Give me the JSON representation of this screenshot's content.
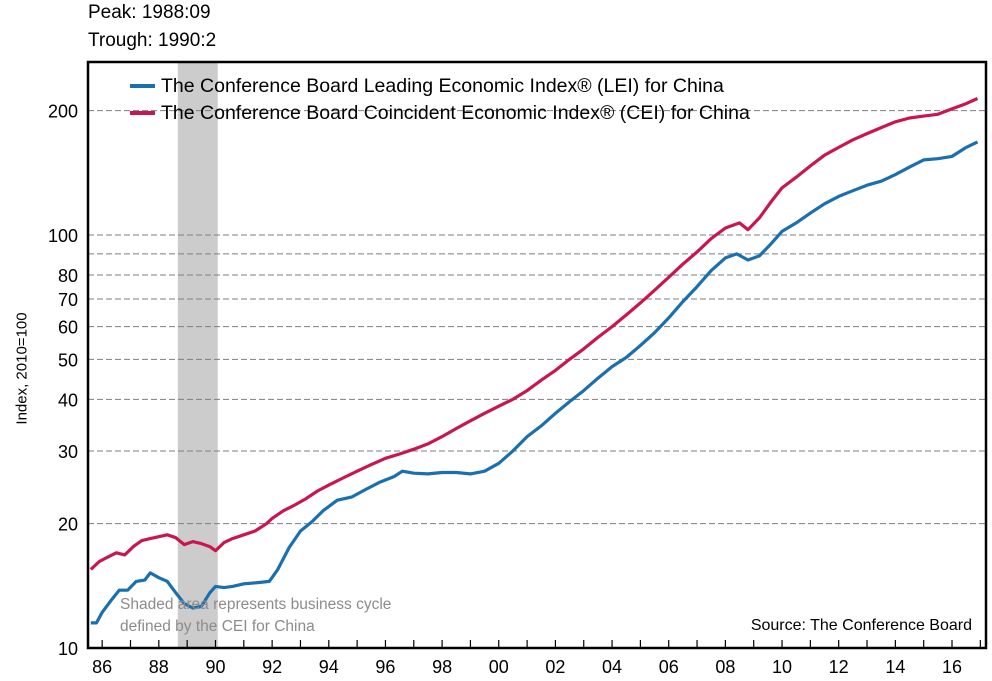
{
  "chart_data": {
    "type": "line",
    "annotations": {
      "peak": "Peak: 1988:09",
      "trough": "Trough: 1990:2",
      "shaded_note_line1": "Shaded area represents business cycle",
      "shaded_note_line2": "defined by the CEI for China",
      "source": "Source: The Conference Board"
    },
    "ylabel": "Index, 2010=100",
    "yscale": "log",
    "ylim": [
      10,
      260
    ],
    "yticks": [
      10,
      20,
      30,
      40,
      50,
      60,
      70,
      80,
      100,
      200
    ],
    "ygrid_values": [
      20,
      30,
      40,
      50,
      60,
      70,
      80,
      90,
      100,
      200
    ],
    "xlim": [
      1985.5,
      2017.2
    ],
    "xtick_labels": [
      "86",
      "88",
      "90",
      "92",
      "94",
      "96",
      "98",
      "00",
      "02",
      "04",
      "06",
      "08",
      "10",
      "12",
      "14",
      "16"
    ],
    "xtick_years": [
      1986,
      1988,
      1990,
      1992,
      1994,
      1996,
      1998,
      2000,
      2002,
      2004,
      2006,
      2008,
      2010,
      2012,
      2014,
      2016
    ],
    "recession": {
      "start": 1988.67,
      "end": 1990.08
    },
    "legend_position": "top-left",
    "series": [
      {
        "name": "The Conference Board Leading Economic Index® (LEI) for China",
        "color": "#1a6fae",
        "x": [
          1985.6,
          1985.8,
          1986.0,
          1986.3,
          1986.6,
          1986.9,
          1987.2,
          1987.5,
          1987.7,
          1988.0,
          1988.3,
          1988.6,
          1988.9,
          1989.2,
          1989.5,
          1989.8,
          1990.0,
          1990.3,
          1990.6,
          1991.0,
          1991.5,
          1991.9,
          1992.2,
          1992.6,
          1993.0,
          1993.4,
          1993.8,
          1994.3,
          1994.8,
          1995.3,
          1995.8,
          1996.3,
          1996.6,
          1997.0,
          1997.5,
          1998.0,
          1998.5,
          1999.0,
          1999.5,
          2000.0,
          2000.5,
          2001.0,
          2001.5,
          2002.0,
          2002.5,
          2003.0,
          2003.5,
          2004.0,
          2004.5,
          2005.0,
          2005.5,
          2006.0,
          2006.5,
          2007.0,
          2007.5,
          2008.0,
          2008.4,
          2008.8,
          2009.2,
          2009.6,
          2010.0,
          2010.5,
          2011.0,
          2011.5,
          2012.0,
          2012.5,
          2013.0,
          2013.5,
          2014.0,
          2014.5,
          2015.0,
          2015.5,
          2016.0,
          2016.5,
          2016.9
        ],
        "values": [
          11.5,
          11.5,
          12.2,
          13.0,
          13.8,
          13.8,
          14.5,
          14.6,
          15.2,
          14.8,
          14.5,
          13.6,
          12.8,
          12.5,
          12.6,
          13.6,
          14.1,
          14.0,
          14.1,
          14.3,
          14.4,
          14.5,
          15.5,
          17.5,
          19.2,
          20.2,
          21.5,
          22.8,
          23.2,
          24.2,
          25.2,
          26.0,
          26.8,
          26.5,
          26.4,
          26.6,
          26.6,
          26.4,
          26.8,
          28.0,
          30.0,
          32.5,
          34.5,
          37.0,
          39.5,
          42.0,
          45.0,
          48.0,
          50.5,
          54.0,
          58.0,
          63.0,
          69.0,
          75.0,
          82.0,
          88.0,
          90.0,
          87.0,
          89.0,
          95.0,
          102.0,
          107.0,
          113.0,
          119.0,
          124.0,
          128.0,
          132.0,
          135.0,
          140.0,
          146.0,
          152.0,
          153.0,
          155.0,
          163.0,
          168.0
        ]
      },
      {
        "name": "The Conference Board Coincident Economic Index® (CEI) for China",
        "color": "#c8174f",
        "x": [
          1985.6,
          1985.9,
          1986.2,
          1986.5,
          1986.8,
          1987.1,
          1987.4,
          1987.7,
          1988.0,
          1988.3,
          1988.6,
          1988.9,
          1989.2,
          1989.5,
          1989.8,
          1990.0,
          1990.3,
          1990.6,
          1991.0,
          1991.4,
          1991.8,
          1992.0,
          1992.4,
          1992.8,
          1993.2,
          1993.6,
          1994.0,
          1994.5,
          1995.0,
          1995.5,
          1996.0,
          1996.5,
          1997.0,
          1997.5,
          1998.0,
          1998.5,
          1999.0,
          1999.5,
          2000.0,
          2000.5,
          2001.0,
          2001.5,
          2002.0,
          2002.5,
          2003.0,
          2003.5,
          2004.0,
          2004.5,
          2005.0,
          2005.5,
          2006.0,
          2006.5,
          2007.0,
          2007.5,
          2008.0,
          2008.5,
          2008.8,
          2009.2,
          2009.6,
          2010.0,
          2010.5,
          2011.0,
          2011.5,
          2012.0,
          2012.5,
          2013.0,
          2013.5,
          2014.0,
          2014.5,
          2015.0,
          2015.5,
          2016.0,
          2016.5,
          2016.9
        ],
        "values": [
          15.5,
          16.2,
          16.6,
          17.0,
          16.8,
          17.6,
          18.2,
          18.4,
          18.6,
          18.8,
          18.5,
          17.8,
          18.1,
          17.9,
          17.6,
          17.2,
          18.0,
          18.4,
          18.8,
          19.2,
          20.0,
          20.6,
          21.5,
          22.2,
          23.0,
          24.0,
          24.8,
          25.8,
          26.8,
          27.8,
          28.8,
          29.5,
          30.3,
          31.2,
          32.5,
          34.0,
          35.5,
          37.0,
          38.5,
          40.0,
          42.0,
          44.5,
          47.0,
          50.0,
          53.0,
          56.5,
          60.0,
          64.0,
          68.5,
          73.5,
          79.0,
          85.0,
          91.0,
          98.0,
          104.0,
          107.0,
          103.0,
          110.0,
          120.0,
          130.0,
          138.0,
          147.0,
          156.0,
          163.0,
          170.0,
          176.0,
          182.0,
          188.0,
          192.0,
          194.0,
          196.0,
          202.0,
          208.0,
          214.0
        ]
      }
    ]
  }
}
